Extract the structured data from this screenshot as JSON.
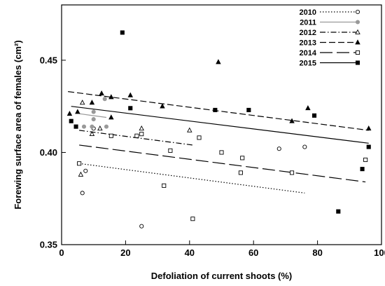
{
  "chart_data": {
    "type": "scatter",
    "xlabel": "Defoliation of current shoots (%)",
    "ylabel": "Forewing surface area of females (cm²)",
    "xlim": [
      0,
      100
    ],
    "ylim": [
      0.35,
      0.48
    ],
    "xticks": [
      0,
      20,
      40,
      60,
      80,
      100
    ],
    "yticks": [
      0.35,
      0.4,
      0.45
    ],
    "ytick_labels": [
      "0.35",
      "0.40",
      "0.45"
    ],
    "grid": false,
    "legend_position": "top-right",
    "series": [
      {
        "name": "2010",
        "marker": "open-circle",
        "line_style": "dotted",
        "color": "#000000",
        "points": [
          [
            6.5,
            0.378
          ],
          [
            7.5,
            0.39
          ],
          [
            10,
            0.413
          ],
          [
            25,
            0.36
          ],
          [
            68,
            0.402
          ],
          [
            76,
            0.403
          ]
        ],
        "fit": [
          [
            5.5,
            0.394
          ],
          [
            76,
            0.378
          ]
        ]
      },
      {
        "name": "2011",
        "marker": "filled-circle",
        "line_style": "solid",
        "color": "#999999",
        "points": [
          [
            7,
            0.414
          ],
          [
            9.5,
            0.414
          ],
          [
            10,
            0.422
          ],
          [
            10,
            0.418
          ],
          [
            13.5,
            0.429
          ],
          [
            14,
            0.414
          ]
        ],
        "fit": [
          [
            5.5,
            0.421
          ],
          [
            14,
            0.419
          ]
        ]
      },
      {
        "name": "2012",
        "marker": "open-triangle",
        "line_style": "dash-dot",
        "color": "#000000",
        "points": [
          [
            6,
            0.388
          ],
          [
            6.5,
            0.427
          ],
          [
            9.5,
            0.41
          ],
          [
            12,
            0.413
          ],
          [
            25,
            0.413
          ],
          [
            40,
            0.412
          ]
        ],
        "fit": [
          [
            5.5,
            0.412
          ],
          [
            41,
            0.404
          ]
        ]
      },
      {
        "name": "2013",
        "marker": "filled-triangle",
        "line_style": "dashed",
        "color": "#000000",
        "points": [
          [
            2.5,
            0.421
          ],
          [
            5,
            0.422
          ],
          [
            9.5,
            0.427
          ],
          [
            12.5,
            0.432
          ],
          [
            15.5,
            0.419
          ],
          [
            15.5,
            0.43
          ],
          [
            21.5,
            0.431
          ],
          [
            31.5,
            0.425
          ],
          [
            49,
            0.449
          ],
          [
            72,
            0.417
          ],
          [
            77,
            0.424
          ],
          [
            96,
            0.413
          ]
        ],
        "fit": [
          [
            2,
            0.433
          ],
          [
            96,
            0.412
          ]
        ]
      },
      {
        "name": "2014",
        "marker": "open-square",
        "line_style": "long-dash",
        "color": "#000000",
        "points": [
          [
            5.5,
            0.394
          ],
          [
            15.5,
            0.409
          ],
          [
            23.5,
            0.409
          ],
          [
            25,
            0.41
          ],
          [
            32,
            0.382
          ],
          [
            34,
            0.401
          ],
          [
            41,
            0.364
          ],
          [
            43,
            0.408
          ],
          [
            50,
            0.4
          ],
          [
            56,
            0.389
          ],
          [
            56.5,
            0.397
          ],
          [
            72,
            0.389
          ],
          [
            95,
            0.396
          ]
        ],
        "fit": [
          [
            5.5,
            0.404
          ],
          [
            95,
            0.384
          ]
        ]
      },
      {
        "name": "2015",
        "marker": "filled-square",
        "line_style": "solid",
        "color": "#000000",
        "points": [
          [
            3,
            0.417
          ],
          [
            4.5,
            0.414
          ],
          [
            19,
            0.465
          ],
          [
            21.5,
            0.424
          ],
          [
            48,
            0.423
          ],
          [
            58.5,
            0.423
          ],
          [
            79,
            0.42
          ],
          [
            86.5,
            0.368
          ],
          [
            94,
            0.391
          ],
          [
            96,
            0.403
          ]
        ],
        "fit": [
          [
            3,
            0.425
          ],
          [
            96,
            0.405
          ]
        ]
      }
    ]
  }
}
